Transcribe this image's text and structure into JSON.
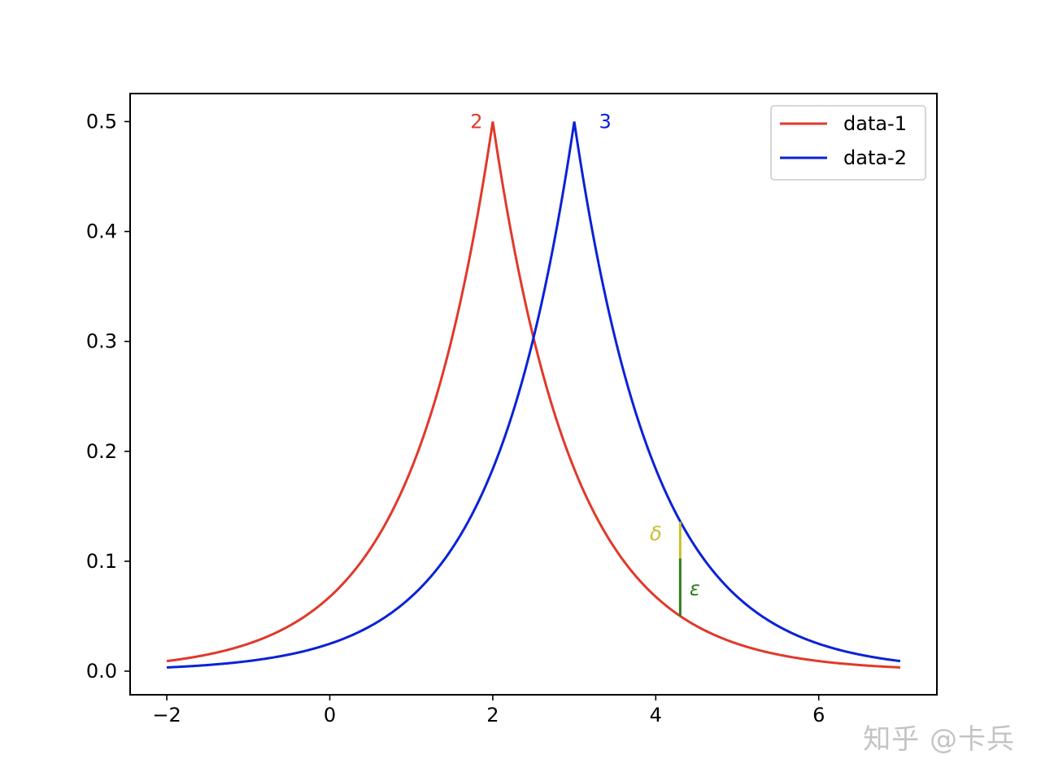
{
  "chart_data": {
    "type": "line",
    "title": "",
    "xlabel": "",
    "ylabel": "",
    "xlim": [
      -2.45,
      7.45
    ],
    "ylim": [
      -0.0215,
      0.5255
    ],
    "xticks": [
      -2,
      0,
      2,
      4,
      6
    ],
    "xtick_labels": [
      "−2",
      "0",
      "2",
      "4",
      "6"
    ],
    "yticks": [
      0.0,
      0.1,
      0.2,
      0.3,
      0.4,
      0.5
    ],
    "ytick_labels": [
      "0.0",
      "0.1",
      "0.2",
      "0.3",
      "0.4",
      "0.5"
    ],
    "grid": false,
    "legend_position": "top-right",
    "series": [
      {
        "name": "data-1",
        "color": "#e0392b",
        "distribution": "laplace",
        "location": 2,
        "scale": 1,
        "x_range": [
          -2,
          7
        ]
      },
      {
        "name": "data-2",
        "color": "#0a22d6",
        "distribution": "laplace",
        "location": 3,
        "scale": 1,
        "x_range": [
          -2,
          7
        ]
      }
    ],
    "annotations": [
      {
        "text": "2",
        "x": 1.8,
        "y": 0.5,
        "color": "#e0392b"
      },
      {
        "text": "3",
        "x": 3.38,
        "y": 0.5,
        "color": "#0a22d6"
      },
      {
        "text": "δ",
        "x": 4.0,
        "y": 0.125,
        "color": "#c8bf2f"
      },
      {
        "text": "ε",
        "x": 4.48,
        "y": 0.075,
        "color": "#2e7d1e"
      }
    ],
    "segments": [
      {
        "label": "δ",
        "x": 4.3,
        "y_from": 0.1025,
        "y_to": 0.1358,
        "color": "#c8bf2f"
      },
      {
        "label": "ε",
        "x": 4.3,
        "y_from": 0.0501,
        "y_to": 0.1025,
        "color": "#2e7d1e"
      }
    ]
  },
  "watermark": "知乎 @卡兵"
}
